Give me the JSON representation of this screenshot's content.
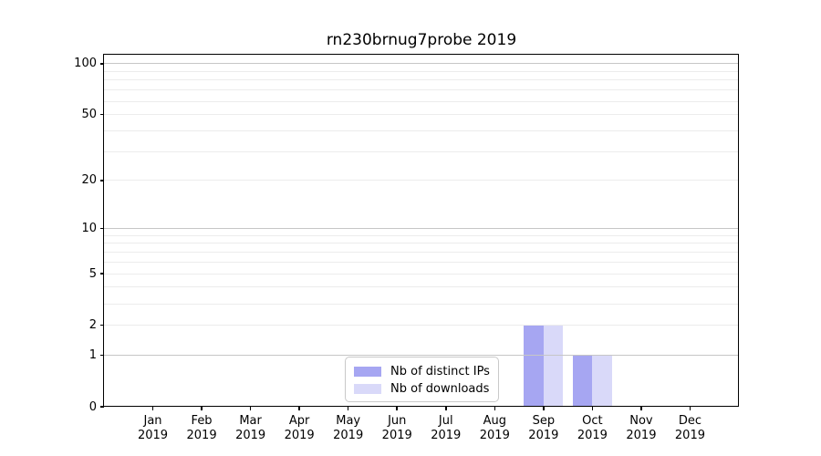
{
  "chart_data": {
    "type": "bar",
    "title": "rn230brnug7probe 2019",
    "x_tick_labels": [
      {
        "line1": "Jan",
        "line2": "2019"
      },
      {
        "line1": "Feb",
        "line2": "2019"
      },
      {
        "line1": "Mar",
        "line2": "2019"
      },
      {
        "line1": "Apr",
        "line2": "2019"
      },
      {
        "line1": "May",
        "line2": "2019"
      },
      {
        "line1": "Jun",
        "line2": "2019"
      },
      {
        "line1": "Jul",
        "line2": "2019"
      },
      {
        "line1": "Aug",
        "line2": "2019"
      },
      {
        "line1": "Sep",
        "line2": "2019"
      },
      {
        "line1": "Oct",
        "line2": "2019"
      },
      {
        "line1": "Nov",
        "line2": "2019"
      },
      {
        "line1": "Dec",
        "line2": "2019"
      }
    ],
    "series": [
      {
        "name": "Nb of distinct IPs",
        "color": "#a6a6f2",
        "values": [
          0,
          0,
          0,
          0,
          0,
          0,
          0,
          0,
          2,
          1,
          0,
          0
        ]
      },
      {
        "name": "Nb of downloads",
        "color": "#d9d9f9",
        "values": [
          0,
          0,
          0,
          0,
          0,
          0,
          0,
          0,
          2,
          1,
          0,
          0
        ]
      }
    ],
    "yscale": "log1p",
    "ylim": [
      0,
      100
    ],
    "y_ticks": [
      0,
      1,
      2,
      5,
      10,
      20,
      50,
      100
    ],
    "grid": {
      "on": true,
      "decade_lines": [
        1,
        10,
        100
      ],
      "minor_lines": [
        2,
        3,
        4,
        5,
        6,
        7,
        8,
        9,
        20,
        30,
        40,
        50,
        60,
        70,
        80,
        90
      ],
      "decade_color": "#c6c6c6",
      "minor_color": "#ececec"
    },
    "legend_position": "lower center",
    "axis_color": "#000000",
    "background_color": "#ffffff"
  }
}
